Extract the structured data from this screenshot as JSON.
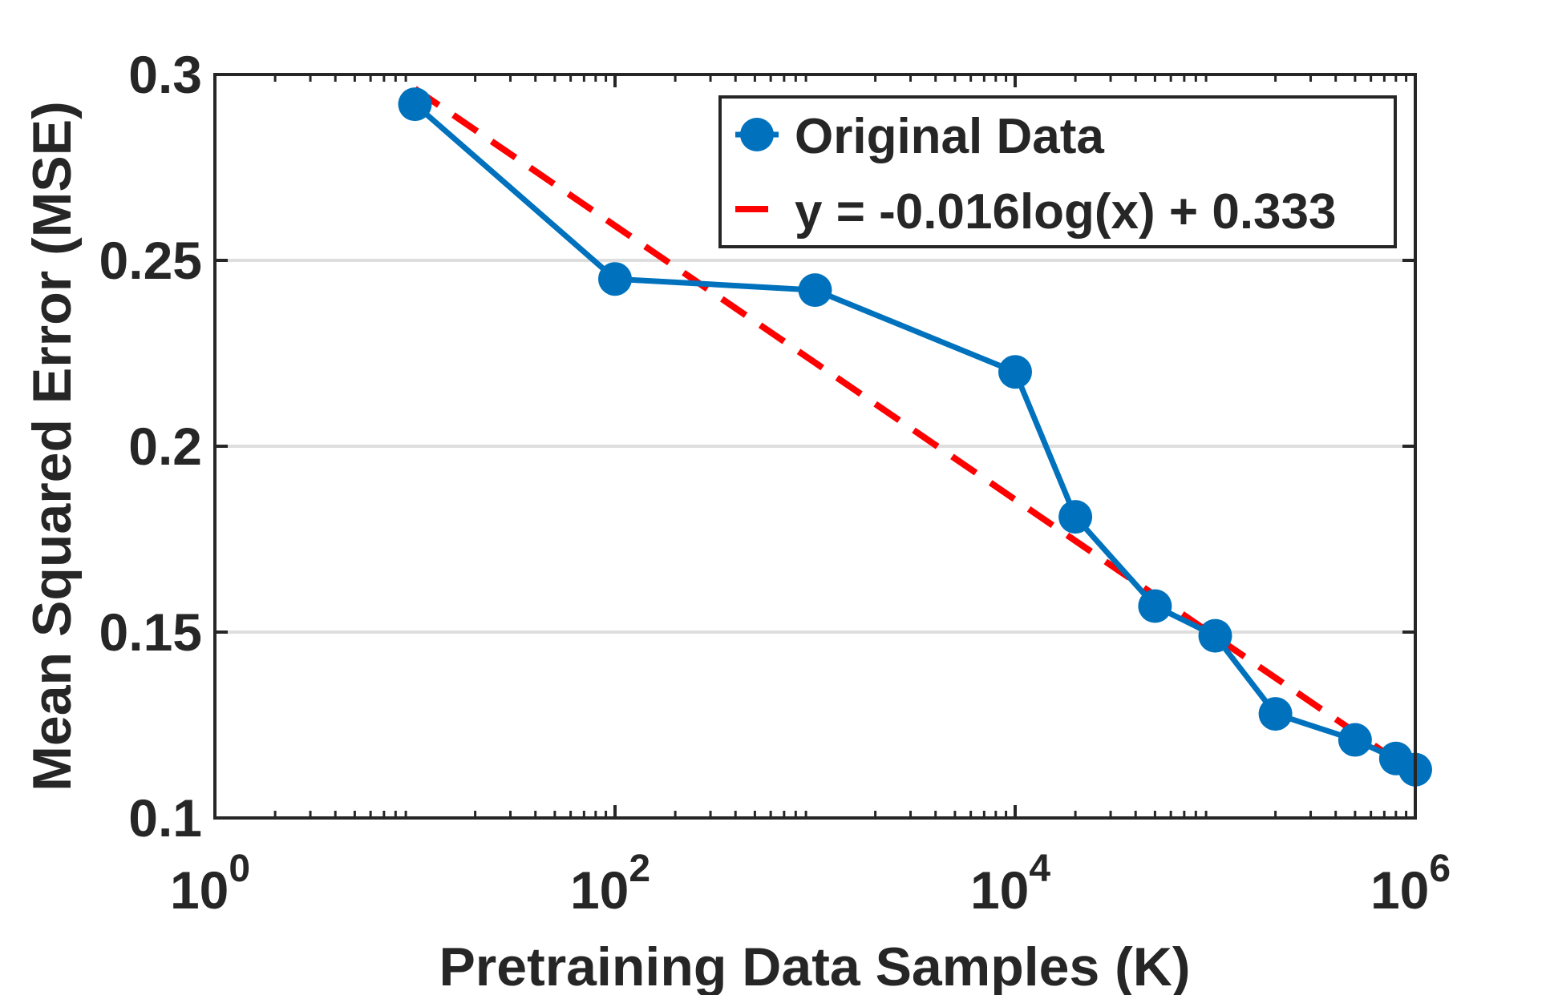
{
  "chart_data": {
    "type": "line",
    "title": "",
    "xlabel": "Pretraining Data Samples (K)",
    "ylabel": "Mean Squared Error (MSE)",
    "xscale": "log",
    "xlim": [
      1,
      1000000
    ],
    "ylim": [
      0.1,
      0.3
    ],
    "x_ticks": [
      {
        "base": "10",
        "exp": "0",
        "value": 1
      },
      {
        "base": "10",
        "exp": "2",
        "value": 100
      },
      {
        "base": "10",
        "exp": "4",
        "value": 10000
      },
      {
        "base": "10",
        "exp": "6",
        "value": 1000000
      }
    ],
    "y_ticks": [
      {
        "label": "0.1",
        "value": 0.1
      },
      {
        "label": "0.15",
        "value": 0.15
      },
      {
        "label": "0.2",
        "value": 0.2
      },
      {
        "label": "0.25",
        "value": 0.25
      },
      {
        "label": "0.3",
        "value": 0.3
      }
    ],
    "grid": "horizontal",
    "legend_position": "top-right",
    "series": [
      {
        "name": "Original Data",
        "style": "solid-line-with-markers",
        "color": "#0072BD",
        "x": [
          10,
          100,
          1000,
          10000,
          20000,
          50000,
          100000,
          200000,
          500000,
          800000,
          1000000
        ],
        "y": [
          0.292,
          0.245,
          0.242,
          0.22,
          0.181,
          0.157,
          0.149,
          0.128,
          0.121,
          0.116,
          0.113
        ]
      },
      {
        "name": "y = -0.016log(x) + 0.333",
        "style": "dashed-line",
        "color": "#FF0000",
        "slope": -0.016,
        "intercept": 0.333,
        "x_range": [
          10,
          1000000
        ]
      }
    ]
  }
}
